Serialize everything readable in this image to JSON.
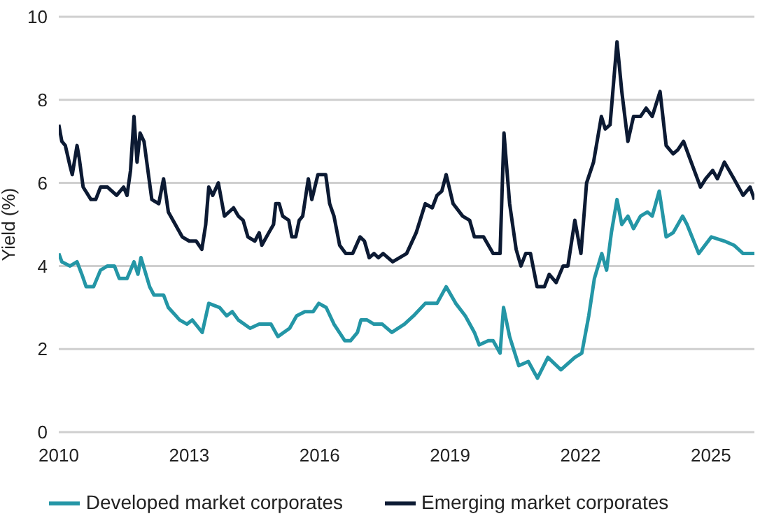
{
  "chart_data": {
    "type": "line",
    "ylabel": "Yield (%)",
    "xlim": [
      2010,
      2026
    ],
    "xticks": [
      2010,
      2013,
      2016,
      2019,
      2022,
      2025
    ],
    "ylim": [
      0,
      10
    ],
    "yticks": [
      0,
      2,
      4,
      6,
      8,
      10
    ],
    "grid": "y",
    "legend": "bottom",
    "line_style": "solid",
    "marker": "none",
    "series": [
      {
        "name": "Emerging market corporates",
        "color": "#0c1a33",
        "x": [
          2010.0,
          2010.07,
          2010.15,
          2010.26,
          2010.31,
          2010.42,
          2010.47,
          2010.56,
          2010.74,
          2010.85,
          2010.96,
          2011.12,
          2011.33,
          2011.49,
          2011.57,
          2011.65,
          2011.73,
          2011.8,
          2011.87,
          2011.96,
          2012.14,
          2012.3,
          2012.41,
          2012.52,
          2012.68,
          2012.84,
          2013.0,
          2013.16,
          2013.29,
          2013.38,
          2013.45,
          2013.54,
          2013.67,
          2013.81,
          2014.02,
          2014.13,
          2014.24,
          2014.35,
          2014.51,
          2014.61,
          2014.67,
          2014.83,
          2014.94,
          2014.99,
          2015.07,
          2015.15,
          2015.29,
          2015.36,
          2015.45,
          2015.53,
          2015.61,
          2015.74,
          2015.82,
          2015.96,
          2016.14,
          2016.23,
          2016.33,
          2016.46,
          2016.6,
          2016.76,
          2016.93,
          2017.03,
          2017.14,
          2017.25,
          2017.35,
          2017.46,
          2017.68,
          2018.0,
          2018.22,
          2018.43,
          2018.59,
          2018.7,
          2018.81,
          2018.91,
          2019.07,
          2019.29,
          2019.45,
          2019.56,
          2019.77,
          2019.99,
          2020.15,
          2020.24,
          2020.37,
          2020.52,
          2020.63,
          2020.74,
          2020.85,
          2021.0,
          2021.17,
          2021.28,
          2021.44,
          2021.6,
          2021.71,
          2021.87,
          2022.01,
          2022.14,
          2022.3,
          2022.48,
          2022.57,
          2022.68,
          2022.84,
          2022.95,
          2023.09,
          2023.22,
          2023.38,
          2023.51,
          2023.65,
          2023.83,
          2023.97,
          2024.13,
          2024.24,
          2024.37,
          2024.51,
          2024.76,
          2024.88,
          2025.04,
          2025.15,
          2025.31,
          2025.53,
          2025.74,
          2025.9,
          2026.0
        ],
        "values": [
          7.4,
          7.0,
          6.9,
          6.4,
          6.2,
          6.9,
          6.6,
          5.9,
          5.6,
          5.6,
          5.9,
          5.9,
          5.7,
          5.9,
          5.7,
          6.3,
          7.6,
          6.5,
          7.2,
          7.0,
          5.6,
          5.5,
          6.1,
          5.3,
          5.0,
          4.7,
          4.6,
          4.6,
          4.4,
          5.0,
          5.9,
          5.7,
          6.0,
          5.2,
          5.4,
          5.2,
          5.1,
          4.7,
          4.6,
          4.8,
          4.5,
          4.8,
          5.0,
          5.5,
          5.5,
          5.2,
          5.1,
          4.7,
          4.7,
          5.1,
          5.2,
          6.1,
          5.6,
          6.2,
          6.2,
          5.5,
          5.2,
          4.5,
          4.3,
          4.3,
          4.7,
          4.6,
          4.2,
          4.3,
          4.2,
          4.3,
          4.1,
          4.3,
          4.8,
          5.5,
          5.4,
          5.7,
          5.8,
          6.2,
          5.5,
          5.2,
          5.1,
          4.7,
          4.7,
          4.3,
          4.3,
          7.2,
          5.5,
          4.4,
          4.0,
          4.3,
          4.3,
          3.5,
          3.5,
          3.8,
          3.6,
          4.0,
          4.0,
          5.1,
          4.3,
          6.0,
          6.5,
          7.6,
          7.3,
          7.4,
          9.4,
          8.2,
          7.0,
          7.6,
          7.6,
          7.8,
          7.6,
          8.2,
          6.9,
          6.7,
          6.8,
          7.0,
          6.6,
          5.9,
          6.1,
          6.3,
          6.1,
          6.5,
          6.1,
          5.7,
          5.9,
          5.6
        ]
      },
      {
        "name": "Developed market corporates",
        "color": "#2496a6",
        "x": [
          2010.0,
          2010.07,
          2010.26,
          2010.42,
          2010.53,
          2010.63,
          2010.8,
          2010.96,
          2011.12,
          2011.28,
          2011.39,
          2011.57,
          2011.73,
          2011.82,
          2011.89,
          2012.09,
          2012.19,
          2012.41,
          2012.52,
          2012.78,
          2012.95,
          2013.07,
          2013.3,
          2013.45,
          2013.7,
          2013.86,
          2013.99,
          2014.13,
          2014.4,
          2014.61,
          2014.88,
          2015.04,
          2015.31,
          2015.47,
          2015.66,
          2015.85,
          2015.98,
          2016.15,
          2016.33,
          2016.58,
          2016.71,
          2016.87,
          2016.95,
          2017.09,
          2017.25,
          2017.44,
          2017.66,
          2017.95,
          2018.16,
          2018.43,
          2018.7,
          2018.91,
          2019.13,
          2019.35,
          2019.56,
          2019.67,
          2019.88,
          2019.99,
          2020.15,
          2020.23,
          2020.37,
          2020.58,
          2020.8,
          2021.01,
          2021.25,
          2021.55,
          2021.87,
          2022.03,
          2022.19,
          2022.32,
          2022.49,
          2022.6,
          2022.71,
          2022.84,
          2022.95,
          2023.09,
          2023.22,
          2023.38,
          2023.54,
          2023.65,
          2023.81,
          2023.97,
          2024.13,
          2024.35,
          2024.45,
          2024.72,
          2025.01,
          2025.31,
          2025.53,
          2025.74,
          2026.0
        ],
        "values": [
          4.3,
          4.1,
          4.0,
          4.1,
          3.8,
          3.5,
          3.5,
          3.9,
          4.0,
          4.0,
          3.7,
          3.7,
          4.1,
          3.8,
          4.2,
          3.5,
          3.3,
          3.3,
          3.0,
          2.7,
          2.6,
          2.7,
          2.4,
          3.1,
          3.0,
          2.8,
          2.9,
          2.7,
          2.5,
          2.6,
          2.6,
          2.3,
          2.5,
          2.8,
          2.9,
          2.9,
          3.1,
          3.0,
          2.6,
          2.2,
          2.2,
          2.4,
          2.7,
          2.7,
          2.6,
          2.6,
          2.4,
          2.6,
          2.8,
          3.1,
          3.1,
          3.5,
          3.1,
          2.8,
          2.4,
          2.1,
          2.2,
          2.2,
          1.9,
          3.0,
          2.3,
          1.6,
          1.7,
          1.3,
          1.8,
          1.5,
          1.8,
          1.9,
          2.8,
          3.7,
          4.3,
          3.9,
          4.8,
          5.6,
          5.0,
          5.2,
          4.9,
          5.2,
          5.3,
          5.2,
          5.8,
          4.7,
          4.8,
          5.2,
          5.0,
          4.3,
          4.7,
          4.6,
          4.5,
          4.3,
          4.3
        ]
      }
    ]
  }
}
